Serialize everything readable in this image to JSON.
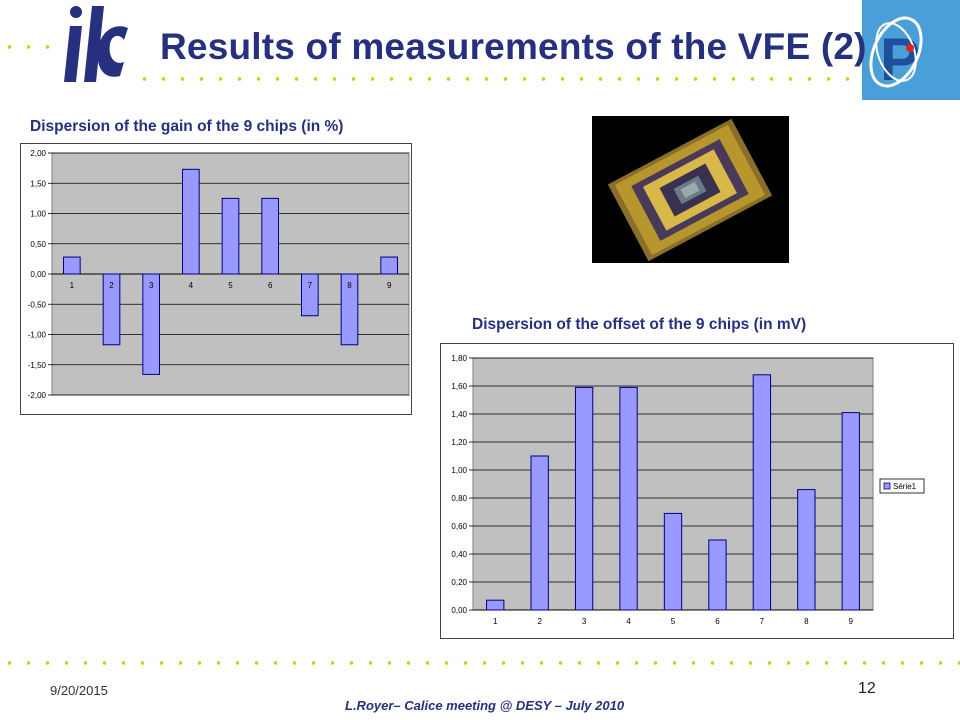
{
  "slide": {
    "title": "Results of measurements of the VFE (2)",
    "date": "9/20/2015",
    "page_number": "12",
    "credit": "L.Royer– Calice meeting @ DESY – July 2010"
  },
  "logos": {
    "left": "ilc",
    "right_icon": "lpc-logo"
  },
  "photo": {
    "icon": "chip-photo"
  },
  "colors": {
    "title": "#26307f",
    "dots": "#c8d20a",
    "plot_bg": "#c0c0c0",
    "bar_fill": "#9999ff",
    "bar_stroke": "#000080"
  },
  "chart_data": [
    {
      "type": "bar",
      "title": "Dispersion of the gain of the 9 chips (in %)",
      "categories": [
        "1",
        "2",
        "3",
        "4",
        "5",
        "6",
        "7",
        "8",
        "9"
      ],
      "values": [
        0.28,
        -1.17,
        -1.66,
        1.73,
        1.25,
        1.25,
        -0.69,
        -1.17,
        0.28
      ],
      "ylim": [
        -2.0,
        2.0
      ],
      "yticks": [
        "2,00",
        "1,50",
        "1,00",
        "0,50",
        "0,00",
        "-0,50",
        "-1,00",
        "-1,50",
        "-2,00"
      ],
      "ytick_values": [
        2.0,
        1.5,
        1.0,
        0.5,
        0.0,
        -0.5,
        -1.0,
        -1.5,
        -2.0
      ],
      "grid": true,
      "legend": null
    },
    {
      "type": "bar",
      "title": "Dispersion of the offset of the 9 chips (in mV)",
      "categories": [
        "1",
        "2",
        "3",
        "4",
        "5",
        "6",
        "7",
        "8",
        "9"
      ],
      "values": [
        0.07,
        1.1,
        1.59,
        1.59,
        0.69,
        0.5,
        1.68,
        0.86,
        1.41
      ],
      "ylim": [
        0.0,
        1.8
      ],
      "yticks": [
        "1,80",
        "1,60",
        "1,40",
        "1,20",
        "1,00",
        "0,80",
        "0,60",
        "0,40",
        "0,20",
        "0,00"
      ],
      "ytick_values": [
        1.8,
        1.6,
        1.4,
        1.2,
        1.0,
        0.8,
        0.6,
        0.4,
        0.2,
        0.0
      ],
      "grid": true,
      "series": [
        {
          "name": "Série1"
        }
      ],
      "legend": "right"
    }
  ]
}
